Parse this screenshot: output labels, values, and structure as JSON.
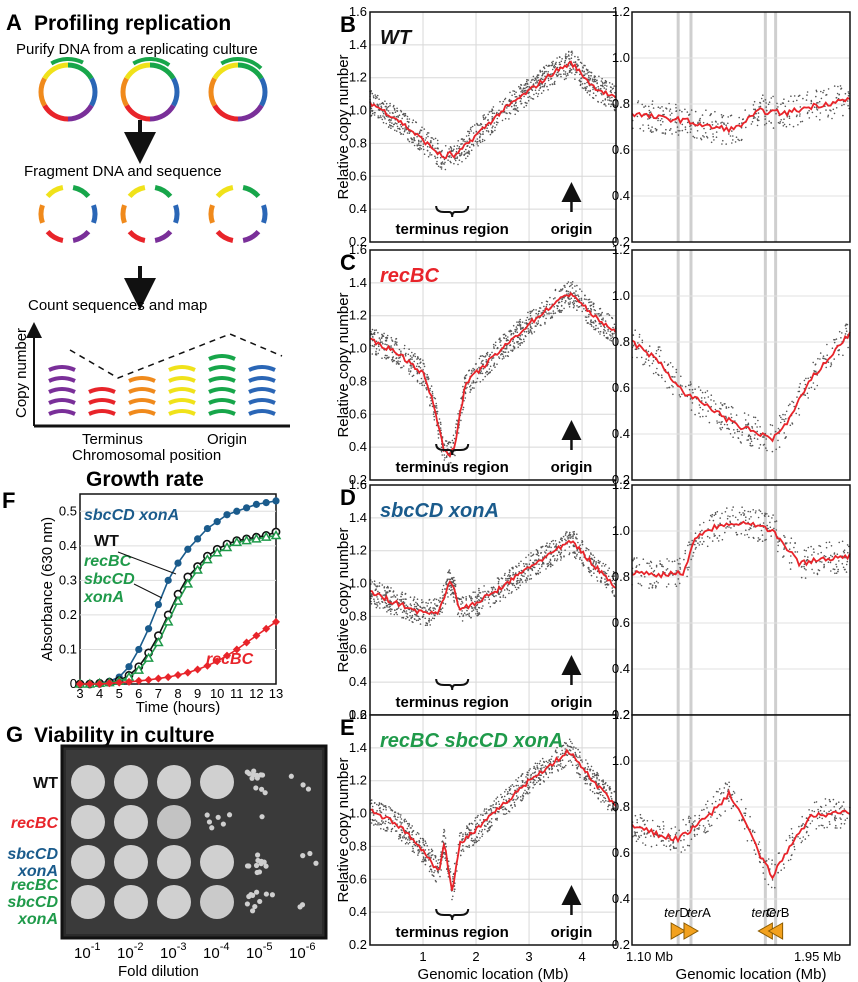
{
  "colors": {
    "red": "#e8242a",
    "blue": "#1a5b8c",
    "green": "#1f9a4a",
    "black": "#111111",
    "gray": "#555555",
    "plasmid": [
      "#17a64a",
      "#2a66b6",
      "#7a2f99",
      "#e8242a",
      "#f08a1c",
      "#f0e21a"
    ]
  },
  "panelA": {
    "letter": "A",
    "title": "Profiling replication",
    "step1": "Purify DNA from a replicating culture",
    "step2": "Fragment DNA and sequence",
    "step3": "Count sequences and map",
    "ylabel": "Copy number",
    "xlabel": "Chromosomal position",
    "terminus_label": "Terminus",
    "origin_label": "Origin"
  },
  "panelsBE": [
    {
      "letter": "B",
      "strain": "WT",
      "strain_color": "#111111"
    },
    {
      "letter": "C",
      "strain": "recBC",
      "strain_color": "#e8242a"
    },
    {
      "letter": "D",
      "strain": "sbcCD xonA",
      "strain_color": "#1a5b8c"
    },
    {
      "letter": "E",
      "strain": "recBC sbcCD xonA",
      "strain_color": "#1f9a4a"
    }
  ],
  "genome_axes": {
    "ylabel": "Relative copy number",
    "xlabel": "Genomic location (Mb)",
    "x_ticks": [
      "1",
      "2",
      "3",
      "4"
    ],
    "y_ticks_left": [
      "0.2",
      "0.4",
      "0.6",
      "0.8",
      "1.0",
      "1.2",
      "1.4",
      "1.6"
    ],
    "y_ticks_right": [
      "0.2",
      "0.4",
      "0.6",
      "0.8",
      "1.0",
      "1.2"
    ],
    "terminus_label": "terminus region",
    "origin_label": "origin",
    "zoom_x_start": "1.10 Mb",
    "zoom_x_end": "1.95 Mb",
    "ter_sites": [
      {
        "pre": "ter",
        "suf": "D"
      },
      {
        "pre": "ter",
        "suf": "A"
      },
      {
        "pre": "ter",
        "suf": "C"
      },
      {
        "pre": "ter",
        "suf": "B"
      }
    ]
  },
  "panelF": {
    "letter": "F",
    "title": "Growth rate",
    "ylabel": "Absorbance (630 nm)",
    "xlabel": "Time (hours)",
    "labels": {
      "sbc": "sbcCD xonA",
      "wt": "WT",
      "triple1": "recBC",
      "triple2": "sbcCD",
      "triple3": "xonA",
      "rec": "recBC"
    }
  },
  "panelG": {
    "letter": "G",
    "title": "Viability in culture",
    "xlabel": "Fold dilution",
    "dilution_base": "10",
    "dilution_exps": [
      "-1",
      "-2",
      "-3",
      "-4",
      "-5",
      "-6"
    ],
    "rows": [
      {
        "lines": [
          "WT"
        ],
        "color": "#111111"
      },
      {
        "lines": [
          "recBC"
        ],
        "color": "#e8242a"
      },
      {
        "lines": [
          "sbcCD",
          "xonA"
        ],
        "color": "#1a5b8c"
      },
      {
        "lines": [
          "recBC",
          "sbcCD",
          "xonA"
        ],
        "color": "#1f9a4a"
      }
    ]
  },
  "chart_data": [
    {
      "type": "line",
      "panel": "B",
      "title": "WT",
      "xlabel": "Genomic location (Mb)",
      "ylabel": "Relative copy number",
      "xlim": [
        0,
        4.64
      ],
      "ylim": [
        0.2,
        1.6
      ],
      "grid": true,
      "series": [
        {
          "name": "",
          "x": [
            0,
            0.5,
            1.0,
            1.4,
            1.5,
            1.6,
            2.0,
            2.5,
            3.0,
            3.5,
            3.8,
            4.2,
            4.64
          ],
          "values": [
            1.05,
            0.95,
            0.82,
            0.71,
            0.74,
            0.72,
            0.85,
            1.0,
            1.12,
            1.24,
            1.29,
            1.15,
            1.07
          ]
        }
      ]
    },
    {
      "type": "line",
      "panel": "B-zoom",
      "xlim": [
        1.1,
        1.95
      ],
      "ylim": [
        0.2,
        1.2
      ],
      "grid": true,
      "series": [
        {
          "name": "",
          "x": [
            1.1,
            1.2,
            1.3,
            1.4,
            1.5,
            1.6,
            1.7,
            1.8,
            1.95
          ],
          "values": [
            0.76,
            0.74,
            0.73,
            0.7,
            0.69,
            0.77,
            0.76,
            0.79,
            0.82
          ]
        }
      ]
    },
    {
      "type": "line",
      "panel": "C",
      "title": "recBC",
      "xlabel": "Genomic location (Mb)",
      "ylabel": "Relative copy number",
      "xlim": [
        0,
        4.64
      ],
      "ylim": [
        0.2,
        1.6
      ],
      "grid": true,
      "series": [
        {
          "name": "",
          "x": [
            0,
            0.5,
            1.0,
            1.2,
            1.4,
            1.5,
            1.6,
            1.8,
            2.0,
            2.5,
            3.0,
            3.5,
            3.8,
            4.2,
            4.64
          ],
          "values": [
            1.05,
            0.98,
            0.85,
            0.66,
            0.38,
            0.35,
            0.42,
            0.78,
            0.85,
            1.0,
            1.15,
            1.28,
            1.34,
            1.2,
            1.1
          ]
        }
      ]
    },
    {
      "type": "line",
      "panel": "C-zoom",
      "xlim": [
        1.1,
        1.95
      ],
      "ylim": [
        0.2,
        1.2
      ],
      "grid": true,
      "series": [
        {
          "name": "",
          "x": [
            1.1,
            1.2,
            1.3,
            1.4,
            1.5,
            1.6,
            1.65,
            1.7,
            1.8,
            1.95
          ],
          "values": [
            0.8,
            0.72,
            0.58,
            0.52,
            0.44,
            0.4,
            0.38,
            0.44,
            0.64,
            0.84
          ]
        }
      ]
    },
    {
      "type": "line",
      "panel": "D",
      "title": "sbcCD xonA",
      "xlabel": "Genomic location (Mb)",
      "ylabel": "Relative copy number",
      "xlim": [
        0,
        4.64
      ],
      "ylim": [
        0.2,
        1.6
      ],
      "grid": true,
      "series": [
        {
          "name": "",
          "x": [
            0,
            0.5,
            1.0,
            1.3,
            1.5,
            1.6,
            1.7,
            2.0,
            2.5,
            3.0,
            3.5,
            3.8,
            4.2,
            4.64
          ],
          "values": [
            0.95,
            0.88,
            0.82,
            0.83,
            1.02,
            0.95,
            0.84,
            0.88,
            0.98,
            1.1,
            1.2,
            1.26,
            1.12,
            0.98
          ]
        }
      ]
    },
    {
      "type": "line",
      "panel": "D-zoom",
      "xlim": [
        1.1,
        1.95
      ],
      "ylim": [
        0.2,
        1.2
      ],
      "grid": true,
      "series": [
        {
          "name": "",
          "x": [
            1.1,
            1.2,
            1.3,
            1.35,
            1.45,
            1.55,
            1.65,
            1.75,
            1.85,
            1.95
          ],
          "values": [
            0.82,
            0.81,
            0.82,
            0.98,
            1.03,
            1.04,
            1.0,
            0.86,
            0.88,
            0.89
          ]
        }
      ]
    },
    {
      "type": "line",
      "panel": "E",
      "title": "recBC sbcCD xonA",
      "xlabel": "Genomic location (Mb)",
      "ylabel": "Relative copy number",
      "xlim": [
        0,
        4.64
      ],
      "ylim": [
        0.2,
        1.6
      ],
      "grid": true,
      "series": [
        {
          "name": "",
          "x": [
            0,
            0.5,
            1.0,
            1.3,
            1.4,
            1.5,
            1.55,
            1.7,
            2.0,
            2.5,
            3.0,
            3.5,
            3.75,
            4.2,
            4.64
          ],
          "values": [
            1.02,
            0.94,
            0.78,
            0.64,
            0.84,
            0.62,
            0.52,
            0.82,
            0.9,
            1.05,
            1.2,
            1.32,
            1.38,
            1.2,
            1.05
          ]
        }
      ]
    },
    {
      "type": "line",
      "panel": "E-zoom",
      "xlim": [
        1.1,
        1.95
      ],
      "ylim": [
        0.2,
        1.2
      ],
      "grid": true,
      "series": [
        {
          "name": "",
          "x": [
            1.1,
            1.2,
            1.28,
            1.4,
            1.48,
            1.55,
            1.6,
            1.65,
            1.72,
            1.8,
            1.95
          ],
          "values": [
            0.72,
            0.68,
            0.66,
            0.76,
            0.86,
            0.72,
            0.58,
            0.5,
            0.64,
            0.76,
            0.78
          ]
        }
      ]
    },
    {
      "type": "line",
      "panel": "F",
      "title": "Growth rate",
      "xlabel": "Time (hours)",
      "ylabel": "Absorbance (630 nm)",
      "xlim": [
        3,
        13
      ],
      "ylim": [
        0,
        0.55
      ],
      "grid": true,
      "categories": [
        3,
        3.5,
        4,
        4.5,
        5,
        5.5,
        6,
        6.5,
        7,
        7.5,
        8,
        8.5,
        9,
        9.5,
        10,
        10.5,
        11,
        11.5,
        12,
        12.5,
        13
      ],
      "series": [
        {
          "name": "sbcCD xonA",
          "values": [
            0.0,
            0.0,
            0.003,
            0.008,
            0.02,
            0.05,
            0.1,
            0.16,
            0.23,
            0.3,
            0.35,
            0.39,
            0.42,
            0.45,
            0.47,
            0.49,
            0.5,
            0.51,
            0.52,
            0.525,
            0.53
          ]
        },
        {
          "name": "WT",
          "values": [
            0.0,
            0.0,
            0.002,
            0.005,
            0.01,
            0.025,
            0.05,
            0.09,
            0.14,
            0.2,
            0.26,
            0.31,
            0.34,
            0.37,
            0.39,
            0.405,
            0.415,
            0.42,
            0.425,
            0.43,
            0.44
          ]
        },
        {
          "name": "recBC sbcCD xonA",
          "values": [
            0.0,
            0.0,
            0.002,
            0.004,
            0.008,
            0.02,
            0.04,
            0.075,
            0.12,
            0.18,
            0.24,
            0.29,
            0.33,
            0.36,
            0.38,
            0.395,
            0.41,
            0.415,
            0.42,
            0.425,
            0.43
          ]
        },
        {
          "name": "recBC",
          "values": [
            0.0,
            0.0,
            0.0,
            0.002,
            0.004,
            0.006,
            0.009,
            0.012,
            0.016,
            0.02,
            0.026,
            0.033,
            0.042,
            0.053,
            0.066,
            0.082,
            0.1,
            0.12,
            0.14,
            0.16,
            0.18
          ]
        }
      ]
    }
  ]
}
